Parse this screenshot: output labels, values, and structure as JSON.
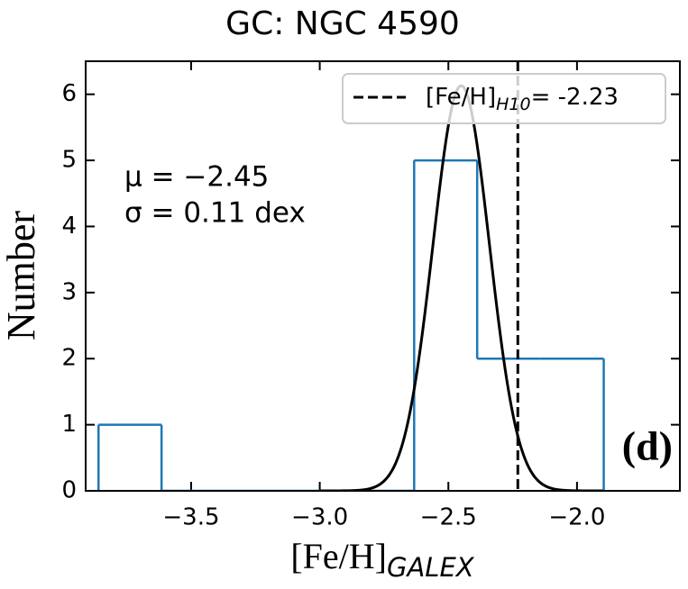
{
  "chart_data": {
    "type": "histogram",
    "title": "GC: NGC 4590",
    "x_label": {
      "text": "[Fe/H]",
      "sub": "GALEX"
    },
    "y_label": "Number",
    "bins": [
      -3.86,
      -3.615,
      -3.37,
      -3.124,
      -2.879,
      -2.633,
      -2.388,
      -2.142,
      -1.896
    ],
    "values": [
      1,
      0,
      0,
      0,
      0,
      5,
      2,
      2
    ],
    "color": "#1f77b4",
    "fit": {
      "mu": -2.45,
      "sigma": 0.11,
      "amplitude": 6.13,
      "color": "#000000"
    },
    "reference_line": {
      "value": -2.23,
      "label": {
        "text": "[Fe/H]",
        "sub": "H10",
        "after": "= -2.23"
      },
      "color": "#000000"
    },
    "annotations": [
      "μ = −2.45",
      "σ = 0.11 dex"
    ],
    "panel_label": "(d)",
    "xlim": [
      -3.91,
      -1.6
    ],
    "ylim": [
      0,
      6.5
    ],
    "xticks": [
      {
        "value": -3.5,
        "label": "−3.5"
      },
      {
        "value": -3.0,
        "label": "−3.0"
      },
      {
        "value": -2.5,
        "label": "−2.5"
      },
      {
        "value": -2.0,
        "label": "−2.0"
      }
    ],
    "yticks": [
      0,
      1,
      2,
      3,
      4,
      5,
      6
    ],
    "legend": "upper right"
  }
}
